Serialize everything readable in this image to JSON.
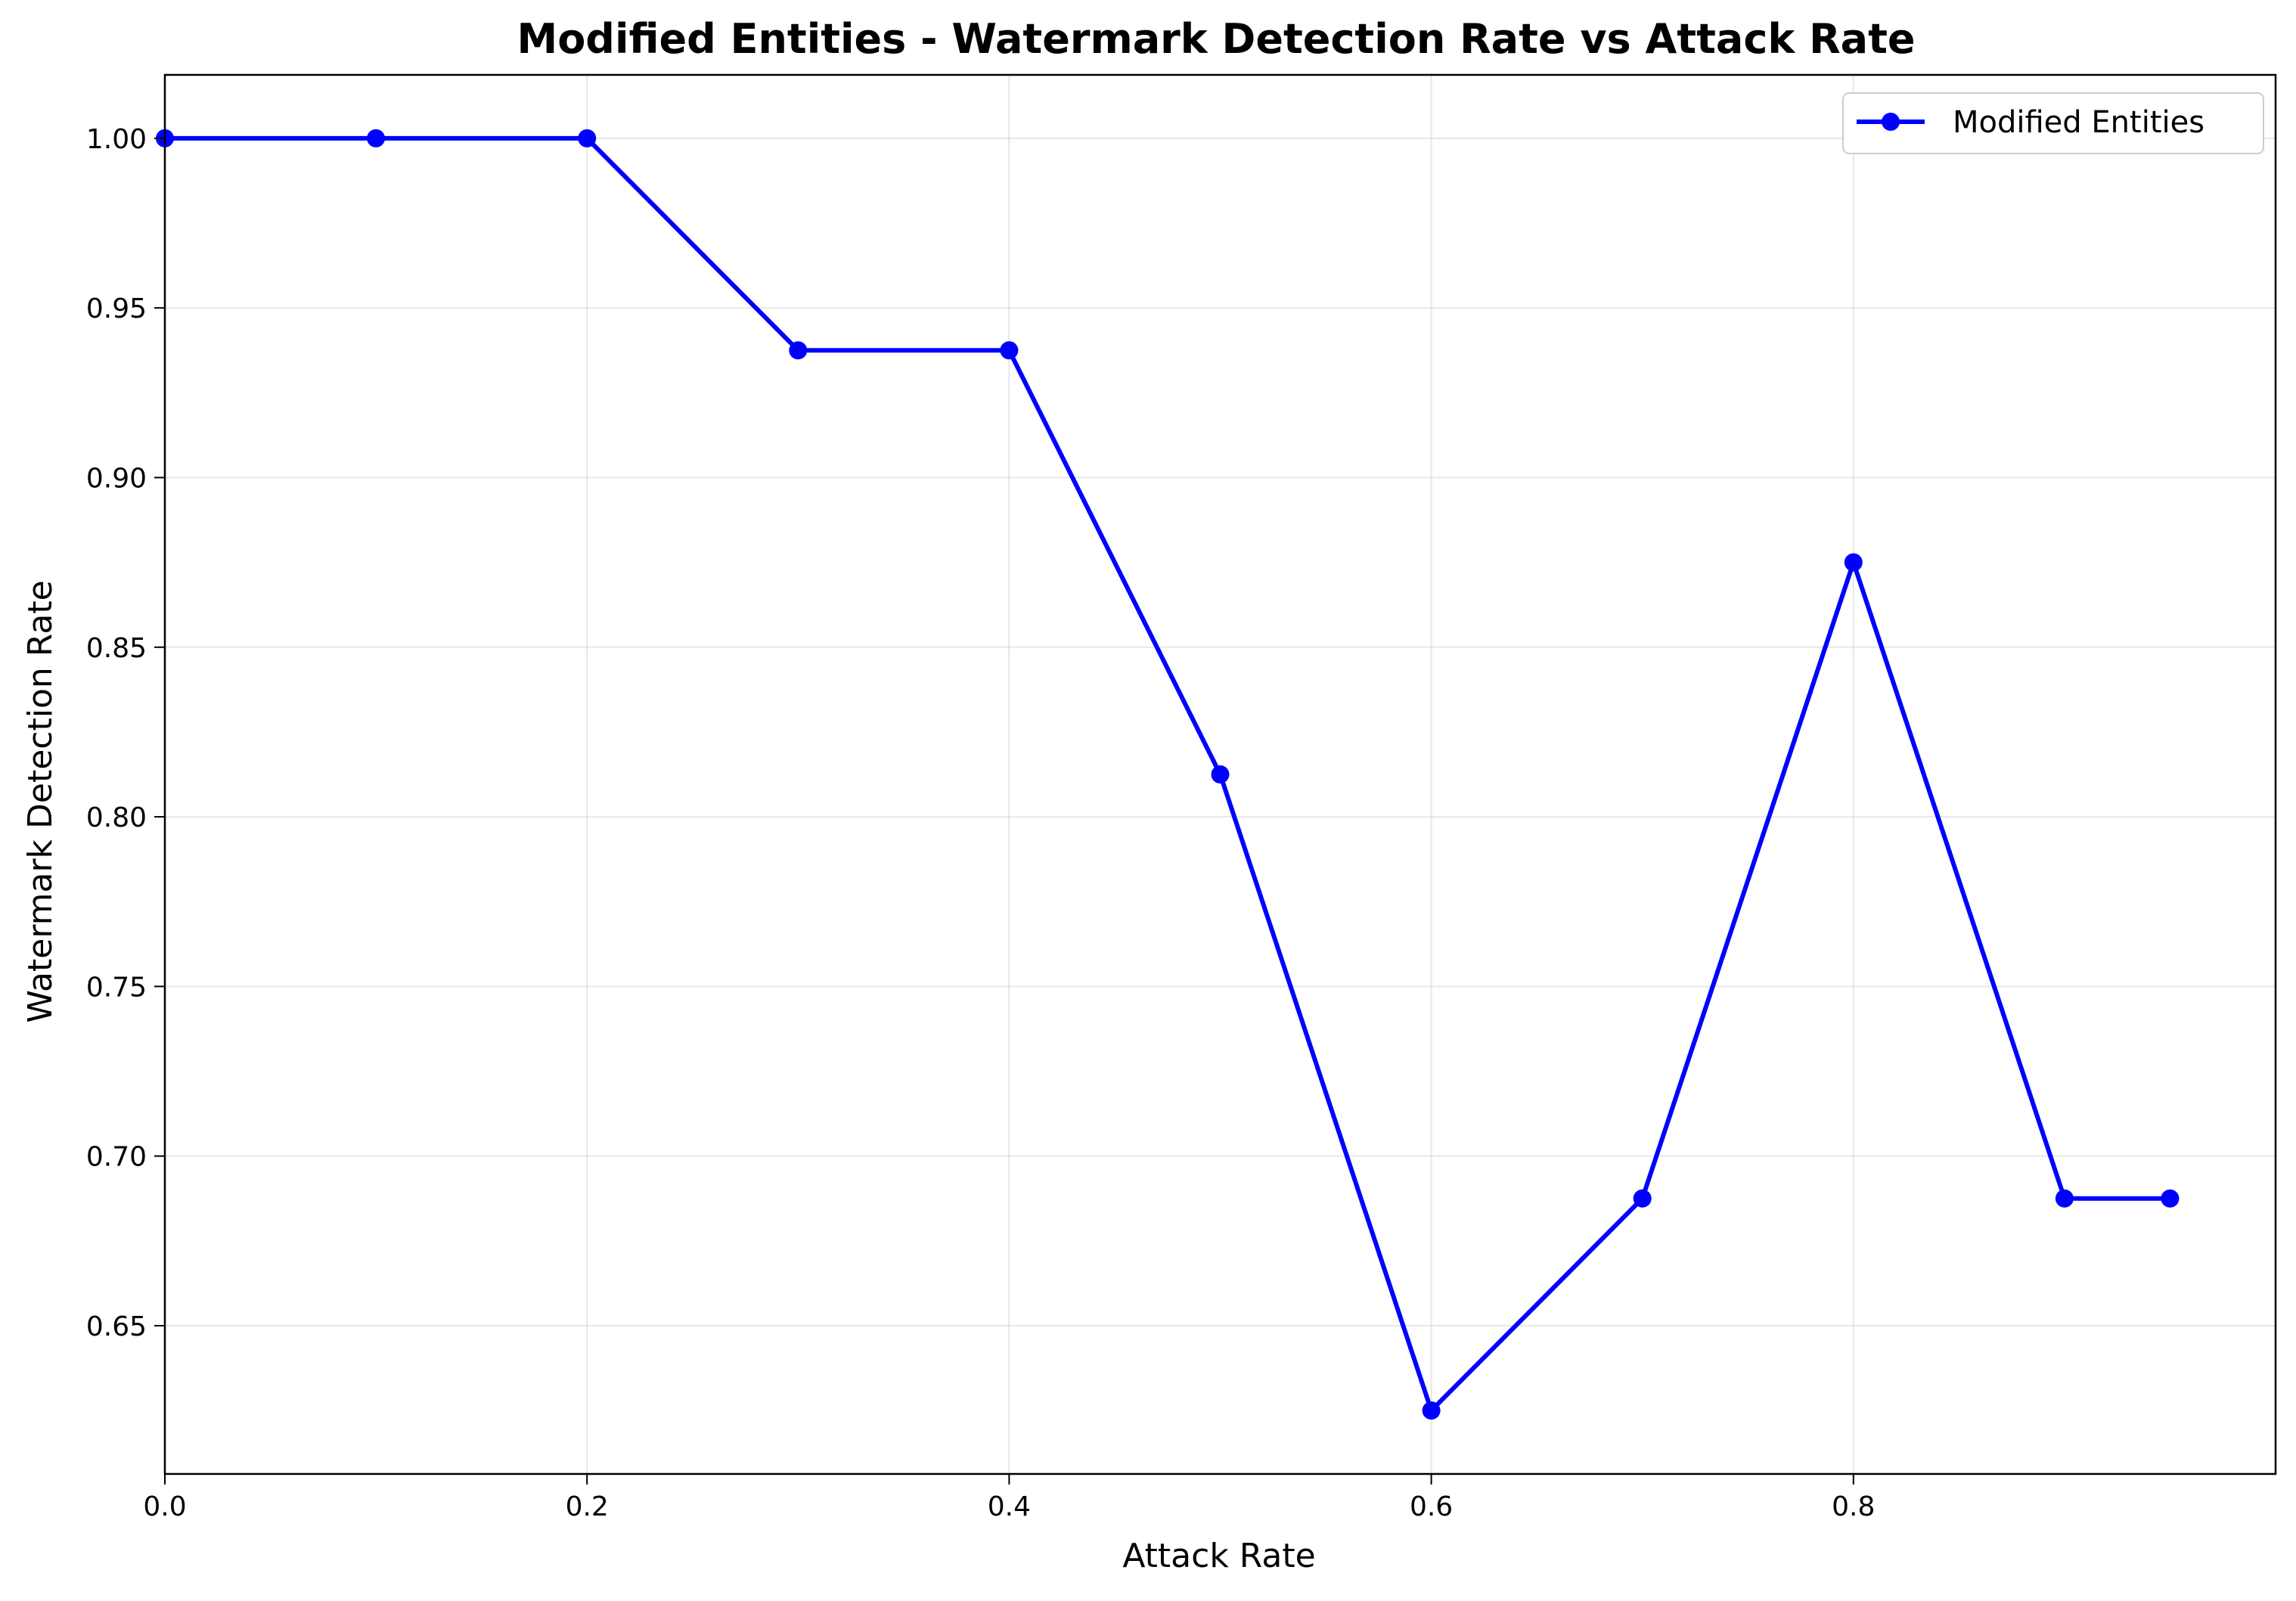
{
  "chart_data": {
    "type": "line",
    "title": "Modified Entities - Watermark Detection Rate vs Attack Rate",
    "xlabel": "Attack Rate",
    "ylabel": "Watermark Detection Rate",
    "xlim": [
      0,
      1.0
    ],
    "ylim": [
      0.6063,
      1.0187
    ],
    "x_ticks": [
      0.0,
      0.2,
      0.4,
      0.6,
      0.8
    ],
    "x_tick_labels": [
      "0.0",
      "0.2",
      "0.4",
      "0.6",
      "0.8"
    ],
    "y_ticks": [
      0.65,
      0.7,
      0.75,
      0.8,
      0.85,
      0.9,
      0.95,
      1.0
    ],
    "y_tick_labels": [
      "0.65",
      "0.70",
      "0.75",
      "0.80",
      "0.85",
      "0.90",
      "0.95",
      "1.00"
    ],
    "grid": true,
    "legend_position": "top-right",
    "series": [
      {
        "name": "Modified Entities",
        "color": "#0000ff",
        "marker": "circle",
        "x": [
          0.0,
          0.1,
          0.2,
          0.3,
          0.4,
          0.5,
          0.6,
          0.7,
          0.8,
          0.9,
          0.95
        ],
        "y": [
          1.0,
          1.0,
          1.0,
          0.9375,
          0.9375,
          0.8125,
          0.625,
          0.6875,
          0.875,
          0.6875,
          0.6875
        ]
      }
    ]
  }
}
